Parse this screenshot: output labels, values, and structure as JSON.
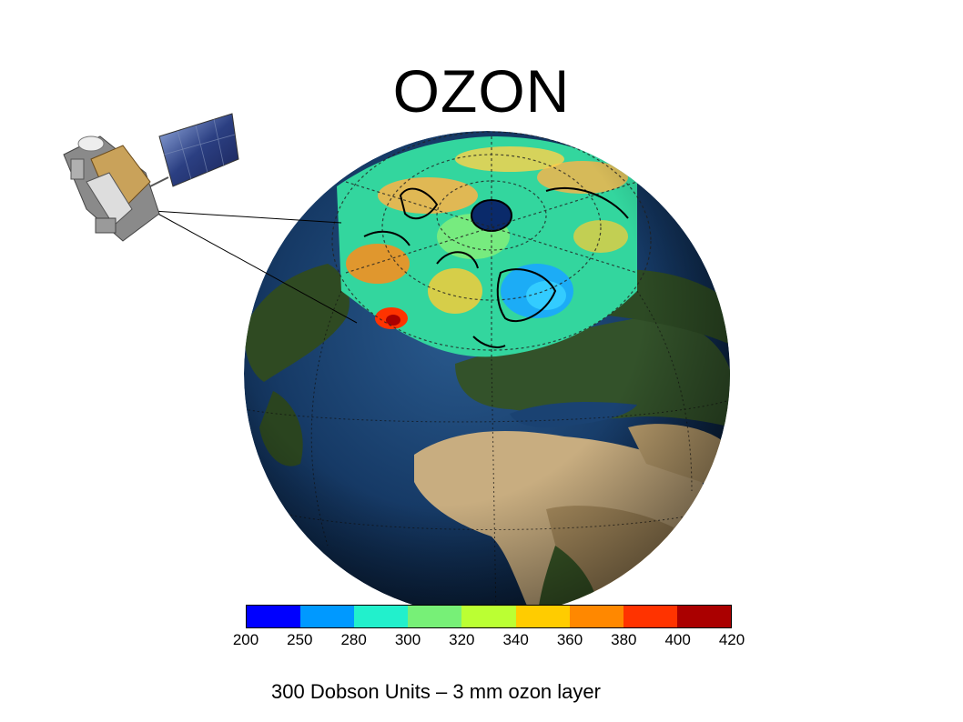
{
  "title": "OZON",
  "caption": "300 Dobson Units – 3 mm ozon layer",
  "colorbar": {
    "ticks": [
      "200",
      "250",
      "280",
      "300",
      "320",
      "340",
      "360",
      "380",
      "400",
      "420"
    ],
    "colors": [
      "#0000ff",
      "#0099ff",
      "#22f0cc",
      "#77f077",
      "#bbff33",
      "#ffcc00",
      "#ff8800",
      "#ff3300",
      "#aa0000"
    ]
  },
  "colors": {
    "ocean": "#12305a",
    "land_dark": "#2f4a22",
    "land_desert": "#c2a77a",
    "ozone_base": "#33cc99",
    "polar_hole": "#0a2a6a"
  },
  "icons": [
    "satellite-icon",
    "globe-image",
    "ozone-map-overlay"
  ]
}
